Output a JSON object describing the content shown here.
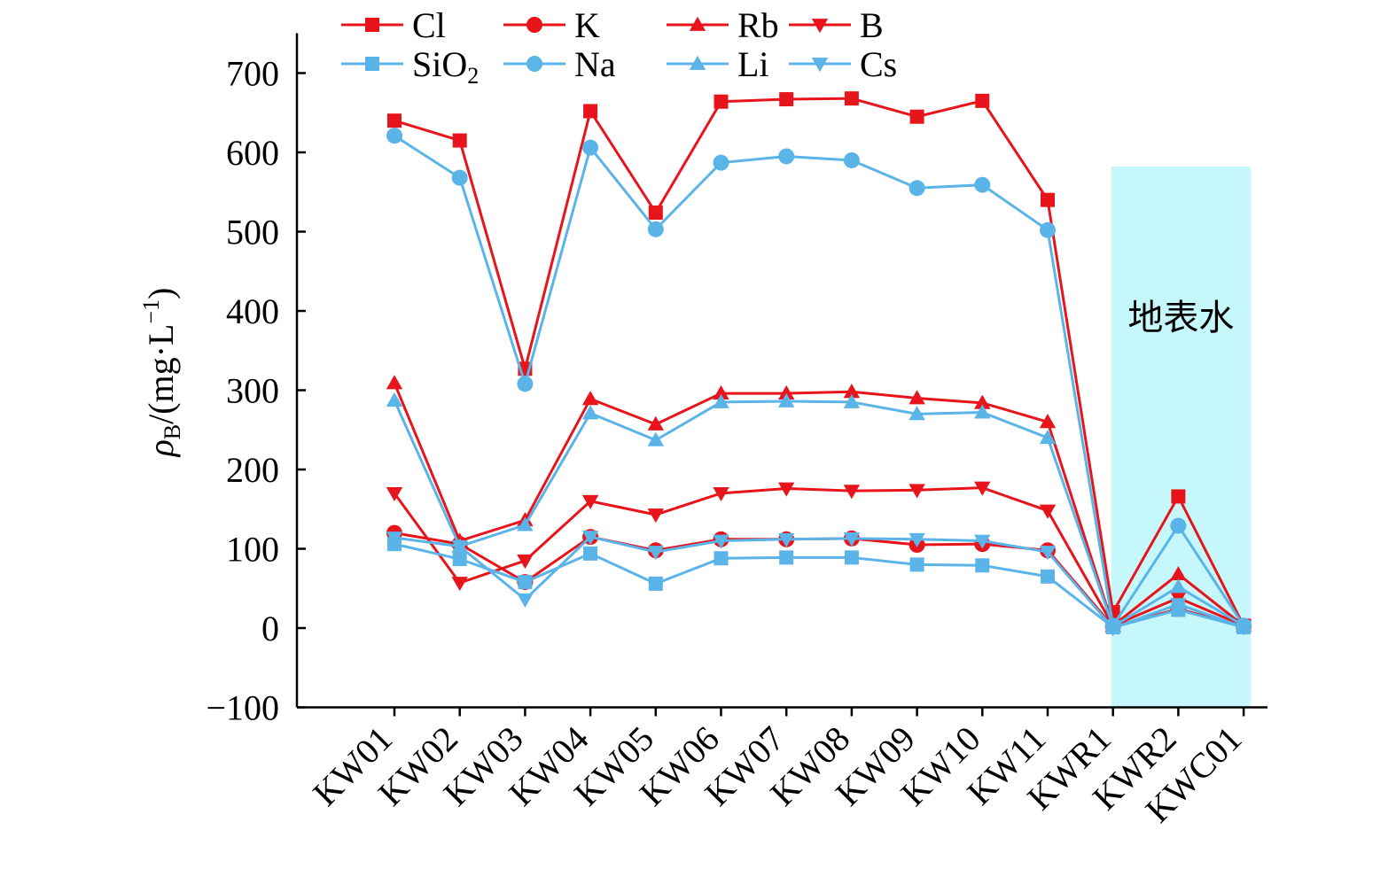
{
  "chart_data": {
    "type": "line",
    "ylabel": {
      "rho": "ρ",
      "sub": "B",
      "main": "/(mg·L",
      "sup": "−1",
      "close": ")"
    },
    "xlabel": "",
    "ylim": [
      -100,
      700
    ],
    "yticks": [
      -100,
      0,
      100,
      200,
      300,
      400,
      500,
      600,
      700
    ],
    "ytick_labels": [
      "−100",
      "0",
      "100",
      "200",
      "300",
      "400",
      "500",
      "600",
      "700"
    ],
    "categories": [
      "KW01",
      "KW02",
      "KW03",
      "KW04",
      "KW05",
      "KW06",
      "KW07",
      "KW08",
      "KW09",
      "KW10",
      "KW11",
      "KWR1",
      "KWR2",
      "KWC01"
    ],
    "grid": false,
    "legend_position": "top",
    "annotation": {
      "text": "地表水",
      "from_category": "KWR1",
      "to_category": "KWC01",
      "y_top": 582,
      "color": "#c6f7fa"
    },
    "colors": {
      "red": "#e8141b",
      "blue": "#5ab4e8"
    },
    "series": [
      {
        "name": "Cl",
        "label_main": "Cl",
        "label_sub": "",
        "color": "#e8141b",
        "marker": "square",
        "values": [
          640,
          615,
          327,
          652,
          524,
          664,
          667,
          668,
          645,
          665,
          540,
          20,
          166,
          3
        ]
      },
      {
        "name": "K",
        "label_main": "K",
        "label_sub": "",
        "color": "#e8141b",
        "marker": "circle",
        "values": [
          120,
          106,
          58,
          115,
          98,
          112,
          112,
          113,
          105,
          106,
          98,
          2,
          24,
          2
        ]
      },
      {
        "name": "Rb",
        "label_main": "Rb",
        "label_sub": "",
        "color": "#e8141b",
        "marker": "triangle-up",
        "values": [
          309,
          110,
          136,
          289,
          257,
          296,
          296,
          298,
          290,
          284,
          260,
          3,
          68,
          3
        ]
      },
      {
        "name": "B",
        "label_main": "B",
        "label_sub": "",
        "color": "#e8141b",
        "marker": "triangle-down",
        "values": [
          170,
          57,
          85,
          160,
          143,
          170,
          176,
          173,
          174,
          177,
          148,
          3,
          38,
          3
        ]
      },
      {
        "name": "SiO2",
        "label_main": "SiO",
        "label_sub": "2",
        "color": "#5ab4e8",
        "marker": "square",
        "values": [
          106,
          87,
          58,
          94,
          56,
          88,
          89,
          89,
          80,
          79,
          65,
          1,
          23,
          1
        ]
      },
      {
        "name": "Na",
        "label_main": "Na",
        "label_sub": "",
        "color": "#5ab4e8",
        "marker": "circle",
        "values": [
          621,
          568,
          308,
          606,
          503,
          587,
          595,
          590,
          555,
          559,
          502,
          3,
          129,
          3
        ]
      },
      {
        "name": "Li",
        "label_main": "Li",
        "label_sub": "",
        "color": "#5ab4e8",
        "marker": "triangle-up",
        "values": [
          287,
          103,
          130,
          271,
          237,
          285,
          286,
          285,
          270,
          272,
          240,
          2,
          52,
          3
        ]
      },
      {
        "name": "Cs",
        "label_main": "Cs",
        "label_sub": "",
        "color": "#5ab4e8",
        "marker": "triangle-down",
        "values": [
          114,
          103,
          36,
          115,
          96,
          110,
          112,
          113,
          112,
          110,
          96,
          0,
          30,
          1
        ]
      }
    ]
  }
}
